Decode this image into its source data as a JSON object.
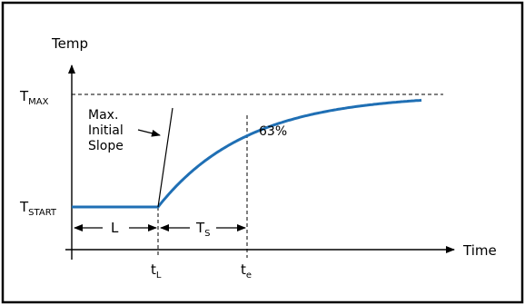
{
  "axes": {
    "y_label": "Temp",
    "x_label": "Time"
  },
  "levels": {
    "t_max": {
      "main": "T",
      "sub": "MAX"
    },
    "t_start": {
      "main": "T",
      "sub": "START"
    }
  },
  "annotations": {
    "slope_line1": "Max.",
    "slope_line2": "Initial",
    "slope_line3": "Slope",
    "percent": "63%",
    "dead_time": "L",
    "time_constant": {
      "main": "T",
      "sub": "S"
    }
  },
  "x_ticks": {
    "t_l": {
      "main": "t",
      "sub": "L"
    },
    "t_e": {
      "main": "t",
      "sub": "e"
    }
  },
  "colors": {
    "curve": "#1f6fb4",
    "ink": "#000000"
  }
}
